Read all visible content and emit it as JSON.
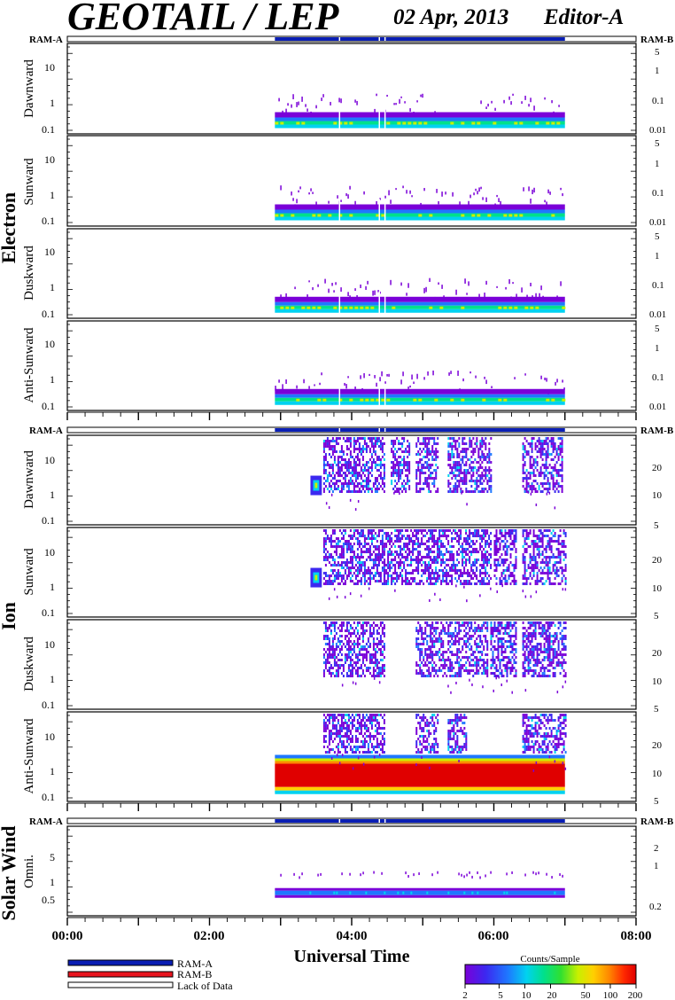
{
  "header": {
    "title": "GEOTAIL / LEP",
    "date": "02 Apr, 2013",
    "editor": "Editor-A"
  },
  "colors": {
    "ram_a": "#0a1eb4",
    "ram_b": "#e8141e",
    "lack": "#ffffff",
    "frame": "#000000",
    "colormap": [
      "#7a00d8",
      "#3c28f0",
      "#1e78ff",
      "#00d2f0",
      "#00e08c",
      "#30e030",
      "#c8f000",
      "#ffd000",
      "#ff8a00",
      "#ff2800",
      "#e00000"
    ]
  },
  "chart_data": {
    "type": "heatmap",
    "x_axis": {
      "label": "Universal Time",
      "range_hours": [
        0,
        8
      ],
      "major_ticks": [
        0,
        2,
        4,
        6,
        8
      ],
      "tick_labels": [
        "00:00",
        "02:00",
        "04:00",
        "06:00",
        "08:00"
      ],
      "minor_tick_step_hours": 0.25
    },
    "data_coverage_hours": [
      2.92,
      7.0
    ],
    "data_gaps_hours": [
      3.82,
      4.38,
      4.46
    ],
    "groups": [
      {
        "name": "Electron",
        "status_left": "RAM-A",
        "status_right": "RAM-B",
        "status_coverage_hours": [
          2.92,
          7.0
        ],
        "right_tick_labels": [
          "5",
          "1",
          "0.1",
          "0.01"
        ],
        "panels": [
          {
            "label": "Dawnward",
            "y_tick_labels": [
              "10",
              "1",
              "0.1"
            ],
            "band_start_hours": 2.92,
            "band_end_hours": 7.0
          },
          {
            "label": "Sunward",
            "y_tick_labels": [
              "10",
              "1",
              "0.1"
            ],
            "band_start_hours": 2.92,
            "band_end_hours": 7.0
          },
          {
            "label": "Duskward",
            "y_tick_labels": [
              "10",
              "1",
              "0.1"
            ],
            "band_start_hours": 2.92,
            "band_end_hours": 7.0
          },
          {
            "label": "Anti-Sunward",
            "y_tick_labels": [
              "10",
              "1",
              "0.1"
            ],
            "band_start_hours": 2.92,
            "band_end_hours": 7.0
          }
        ]
      },
      {
        "name": "Ion",
        "status_left": "RAM-A",
        "status_right": "RAM-B",
        "status_coverage_hours": [
          2.92,
          7.0
        ],
        "right_tick_labels": [
          "20",
          "10",
          "5"
        ],
        "panels": [
          {
            "label": "Dawnward",
            "y_tick_labels": [
              "10",
              "1",
              "0.1"
            ],
            "active_hours": [
              [
                3.6,
                4.45
              ],
              [
                4.55,
                4.8
              ],
              [
                4.9,
                5.2
              ],
              [
                5.35,
                5.95
              ],
              [
                6.4,
                6.95
              ]
            ],
            "blob_hours": [
              3.42,
              3.58
            ]
          },
          {
            "label": "Sunward",
            "y_tick_labels": [
              "10",
              "1",
              "0.1"
            ],
            "active_hours": [
              [
                3.6,
                4.45
              ],
              [
                4.45,
                5.95
              ],
              [
                6.0,
                6.3
              ],
              [
                6.4,
                7.0
              ]
            ],
            "blob_hours": [
              3.42,
              3.58
            ]
          },
          {
            "label": "Duskward",
            "y_tick_labels": [
              "10",
              "1",
              "0.1"
            ],
            "active_hours": [
              [
                3.6,
                4.45
              ],
              [
                4.9,
                5.9
              ],
              [
                5.95,
                6.3
              ],
              [
                6.4,
                7.0
              ]
            ]
          },
          {
            "label": "Anti-Sunward",
            "y_tick_labels": [
              "10",
              "1",
              "0.1"
            ],
            "active_hours": [
              [
                3.6,
                4.45
              ],
              [
                4.9,
                5.2
              ],
              [
                5.35,
                5.6
              ],
              [
                6.4,
                7.0
              ]
            ],
            "saturated_hours": [
              2.92,
              7.0
            ]
          }
        ]
      },
      {
        "name": "Solar Wind",
        "status_left": "RAM-A",
        "status_right": "RAM-B",
        "status_coverage_hours": [
          2.92,
          7.0
        ],
        "right_tick_labels": [
          "2",
          "1",
          "0.2"
        ],
        "panels": [
          {
            "label": "Omni.",
            "y_tick_labels": [
              "5",
              "1",
              "0.5"
            ],
            "band_start_hours": 2.92,
            "band_end_hours": 7.0
          }
        ]
      }
    ],
    "legend": {
      "items": [
        "RAM-A",
        "RAM-B",
        "Lack of Data"
      ]
    },
    "colorbar": {
      "title": "Counts/Sample",
      "tick_labels": [
        "2",
        "5",
        "10",
        "20",
        "50",
        "100",
        "200"
      ],
      "range": [
        2,
        200
      ],
      "scale": "log"
    }
  }
}
